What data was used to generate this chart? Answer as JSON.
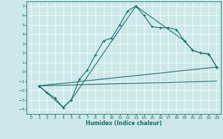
{
  "title": "",
  "xlabel": "Humidex (Indice chaleur)",
  "xlim": [
    -0.5,
    23.5
  ],
  "ylim": [
    -4.5,
    7.5
  ],
  "yticks": [
    -4,
    -3,
    -2,
    -1,
    0,
    1,
    2,
    3,
    4,
    5,
    6,
    7
  ],
  "xticks": [
    0,
    1,
    2,
    3,
    4,
    5,
    6,
    7,
    8,
    9,
    10,
    11,
    12,
    13,
    14,
    15,
    16,
    17,
    18,
    19,
    20,
    21,
    22,
    23
  ],
  "bg_color": "#cce8e8",
  "line_color": "#1a6b6b",
  "grid_color": "#ffffff",
  "line1_x": [
    1,
    2,
    3,
    4,
    5,
    6,
    7,
    8,
    9,
    10,
    11,
    12,
    13,
    14,
    15,
    16,
    17,
    18,
    19,
    20,
    21,
    22,
    23
  ],
  "line1_y": [
    -1.5,
    -2.2,
    -2.8,
    -3.8,
    -3.0,
    -0.8,
    0.2,
    1.8,
    3.3,
    3.6,
    5.0,
    6.5,
    7.0,
    6.0,
    4.8,
    4.7,
    4.7,
    4.5,
    3.3,
    2.3,
    2.0,
    1.9,
    0.5
  ],
  "line2_x": [
    1,
    4,
    5,
    13,
    19,
    20,
    21,
    22,
    23
  ],
  "line2_y": [
    -1.5,
    -3.8,
    -3.0,
    7.0,
    3.3,
    2.3,
    2.0,
    1.9,
    0.5
  ],
  "line3_x": [
    1,
    23
  ],
  "line3_y": [
    -1.5,
    0.5
  ],
  "line4_x": [
    1,
    23
  ],
  "line4_y": [
    -1.5,
    -1.0
  ]
}
